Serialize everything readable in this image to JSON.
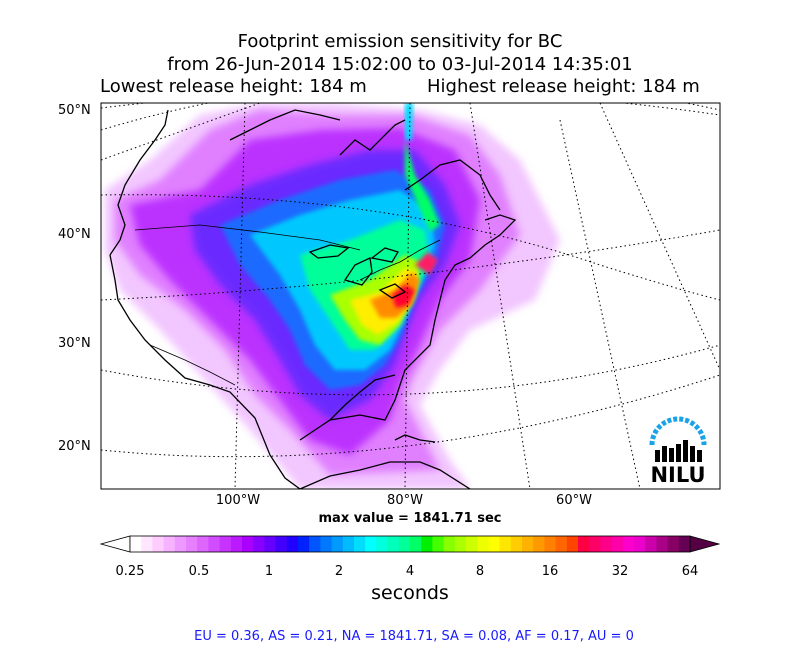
{
  "title": {
    "line1": "Footprint emission sensitivity for BC",
    "line2": "from 26-Jun-2014 15:02:00 to 03-Jul-2014 14:35:01",
    "lowest": "Lowest release height: 184 m",
    "highest": "Highest release height: 184 m"
  },
  "map": {
    "lat_labels": [
      "50°N",
      "40°N",
      "30°N",
      "20°N"
    ],
    "lon_labels": [
      "100°W",
      "80°W",
      "60°W"
    ],
    "max_value": "max value = 1841.71 sec",
    "logo": {
      "text": "NILU",
      "color": "#1aa3e8"
    }
  },
  "colorbar": {
    "ticks": [
      "0.25",
      "0.5",
      "1",
      "2",
      "4",
      "8",
      "16",
      "32",
      "64"
    ],
    "unit": "seconds",
    "colors": [
      "#ffffff",
      "#ffe6ff",
      "#ffccff",
      "#f7b3ff",
      "#ee99ff",
      "#e680ff",
      "#dd66ff",
      "#d24dff",
      "#c733ff",
      "#bb1aff",
      "#aa00ff",
      "#8800ff",
      "#6600ff",
      "#4400ff",
      "#2200ff",
      "#0022ff",
      "#0055ff",
      "#0077ff",
      "#0099ff",
      "#00bbff",
      "#00ddff",
      "#00ffff",
      "#00ffdd",
      "#00ffbb",
      "#00ff99",
      "#00ff66",
      "#00ee00",
      "#44ff00",
      "#88ff00",
      "#aaff00",
      "#ccff00",
      "#eeff00",
      "#ffff00",
      "#ffe600",
      "#ffcc00",
      "#ffb300",
      "#ff9900",
      "#ff8000",
      "#ff6600",
      "#ff4400",
      "#ff0044",
      "#ff0066",
      "#ff0088",
      "#ff00aa",
      "#ff00cc",
      "#ee00cc",
      "#cc00aa",
      "#aa0088",
      "#880066",
      "#660055"
    ],
    "left_color": "#ffffff",
    "right_color": "#550044"
  },
  "summary": "EU = 0.36,  AS = 0.21,  NA = 1841.71,  SA = 0.08,  AF = 0.17,  AU = 0"
}
